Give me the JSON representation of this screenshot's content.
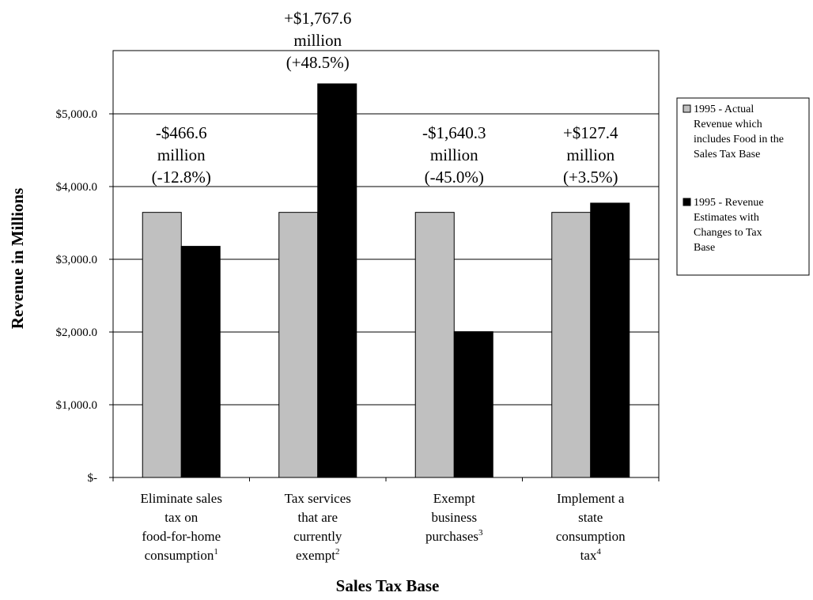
{
  "chart_data": {
    "type": "bar",
    "xlabel": "Sales Tax Base",
    "ylabel": "Revenue in Millions",
    "ylim": [
      0,
      5000
    ],
    "yticks": [
      0,
      1000,
      2000,
      3000,
      4000,
      5000
    ],
    "ytick_labels": [
      "$-",
      "$1,000.0",
      "$2,000.0",
      "$3,000.0",
      "$4,000.0",
      "$5,000.0"
    ],
    "grid": "horizontal",
    "legend_position": "right",
    "categories": [
      {
        "lines": [
          "Eliminate sales",
          "tax on",
          "food-for-home",
          "consumption"
        ],
        "footnote": "1"
      },
      {
        "lines": [
          "Tax services",
          "that are",
          "currently",
          "exempt"
        ],
        "footnote": "2"
      },
      {
        "lines": [
          "Exempt",
          "business",
          "purchases"
        ],
        "footnote": "3",
        "inline_footnote": true
      },
      {
        "lines": [
          "Implement a",
          "state",
          "consumption",
          "tax"
        ],
        "footnote": "4"
      }
    ],
    "series": [
      {
        "name": "1995 - Actual Revenue which includes Food in the Sales Tax Base",
        "legend_lines": [
          "1995 - Actual",
          "Revenue which",
          "includes Food in the",
          "Sales Tax Base"
        ],
        "color": "#c0c0c0",
        "values": [
          3645.0,
          3645.0,
          3645.0,
          3645.0
        ]
      },
      {
        "name": "1995 - Revenue Estimates with Changes to Tax Base",
        "legend_lines": [
          "1995 - Revenue",
          "Estimates with",
          "Changes to Tax",
          "Base"
        ],
        "color": "#000000",
        "values": [
          3178.4,
          5412.6,
          2004.7,
          3772.4
        ]
      }
    ],
    "annotations": [
      [
        "-$466.6",
        "million",
        "(-12.8%)"
      ],
      [
        "+$1,767.6",
        "million",
        "(+48.5%)"
      ],
      [
        "-$1,640.3",
        "million",
        "(-45.0%)"
      ],
      [
        "+$127.4",
        "million",
        "(+3.5%)"
      ]
    ]
  }
}
